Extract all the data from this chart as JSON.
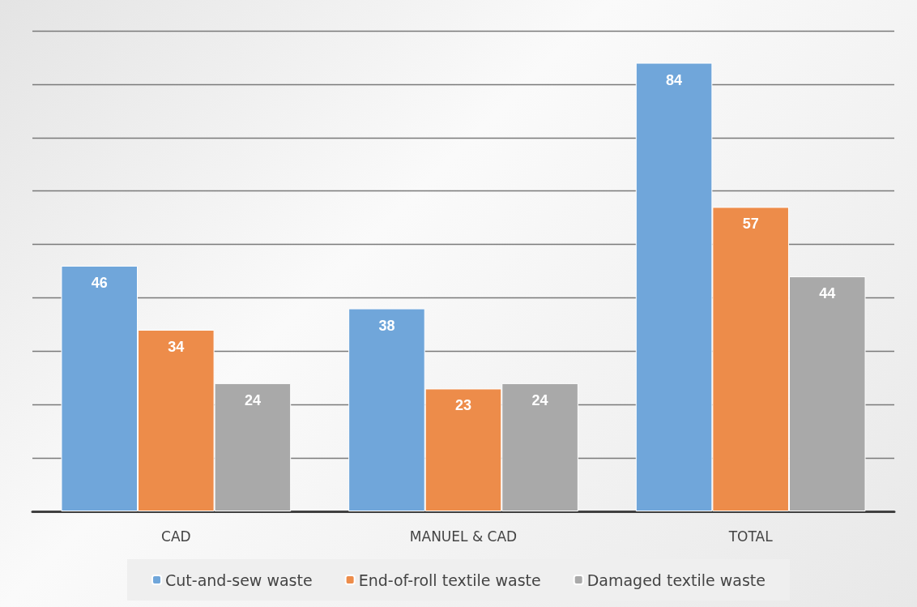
{
  "chart_data": {
    "type": "bar",
    "categories": [
      "CAD",
      "MANUEL & CAD",
      "TOTAL"
    ],
    "series": [
      {
        "name": "Cut-and-sew waste",
        "color": "#70a6da",
        "values": [
          46,
          38,
          84
        ]
      },
      {
        "name": "End-of-roll textile waste",
        "color": "#ed8c4a",
        "values": [
          34,
          23,
          57
        ]
      },
      {
        "name": "Damaged textile waste",
        "color": "#a9a9a9",
        "values": [
          24,
          24,
          44
        ]
      }
    ],
    "ylim": [
      0,
      90
    ],
    "yticks": [
      {
        "value": 0,
        "label": null
      },
      {
        "value": 10,
        "label": null
      },
      {
        "value": 20,
        "label": null
      },
      {
        "value": 30,
        "label": null
      },
      {
        "value": 40,
        "label": null
      },
      {
        "value": 50,
        "label": null
      },
      {
        "value": 60,
        "label": null
      },
      {
        "value": 70,
        "label": null
      },
      {
        "value": 80,
        "label": null
      },
      {
        "value": 90,
        "label": null
      }
    ],
    "tick_labels": "x",
    "grid": "y",
    "legend": "bottom",
    "data_labels": true
  }
}
